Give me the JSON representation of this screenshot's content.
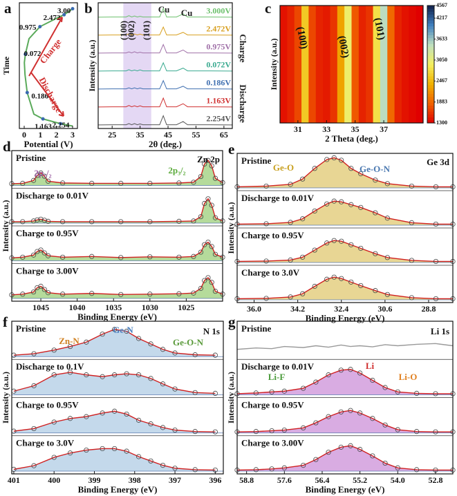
{
  "chart_data": [
    {
      "type": "profile",
      "panel": "a",
      "xlabel": "Potential (V)",
      "ylabel": "Time",
      "color": "#5aaa5a",
      "point_color": "#3a6ab0",
      "xlim": [
        -0.3,
        3.3
      ],
      "xticks": [
        0,
        1,
        2,
        3
      ],
      "x": [
        3.0,
        2.254,
        1.163,
        0.6,
        0.186,
        0.05,
        0.01,
        0.072,
        0.3,
        0.975,
        2.0,
        2.472,
        3.0
      ],
      "values": [
        2,
        4,
        8,
        12,
        30,
        45,
        55,
        62,
        75,
        85,
        92,
        95,
        100
      ],
      "ylim": [
        0,
        105
      ],
      "points": {
        "x": [
          3.0,
          2.472,
          0.975,
          0.072,
          0.186,
          1.163,
          2.254
        ],
        "values": [
          100,
          95,
          85,
          62,
          30,
          8,
          4
        ],
        "labels": [
          "3.00",
          "2.472",
          "0.975",
          "0.072",
          "0.186",
          "1.163",
          "2.254"
        ]
      },
      "annotations": [
        {
          "text": "Charge",
          "color": "#d03030"
        },
        {
          "text": "Discharge",
          "color": "#d03030"
        }
      ]
    },
    {
      "type": "stack",
      "panel": "b",
      "xlabel": "2θ (deg.)",
      "ylabel": "Intensity (a.u.)",
      "markers": false,
      "xlim": [
        20,
        68
      ],
      "xticks": [
        25,
        35,
        45,
        55,
        65
      ],
      "span": [
        29,
        39
      ],
      "span_color": "#e4d8f4",
      "x": [
        20,
        25,
        30,
        31,
        32,
        33,
        34,
        35,
        36,
        40,
        42,
        43.3,
        44.5,
        48,
        50.4,
        52,
        60,
        68
      ],
      "series": [
        {
          "name": "3.000V",
          "color": "#6cc06c",
          "values": [
            5,
            6,
            6,
            14,
            6,
            12,
            6,
            10,
            6,
            6,
            6,
            60,
            6,
            6,
            25,
            6,
            6,
            5
          ]
        },
        {
          "name": "2.472V",
          "color": "#d8a020",
          "values": [
            5,
            6,
            6,
            13,
            6,
            12,
            6,
            11,
            6,
            6,
            6,
            55,
            6,
            6,
            22,
            6,
            6,
            5
          ]
        },
        {
          "name": "0.975V",
          "color": "#a070a8",
          "values": [
            5,
            6,
            6,
            12,
            6,
            13,
            6,
            10,
            6,
            6,
            6,
            58,
            6,
            6,
            24,
            6,
            6,
            5
          ]
        },
        {
          "name": "0.072V",
          "color": "#3aaa90",
          "values": [
            5,
            6,
            6,
            13,
            6,
            11,
            6,
            12,
            6,
            6,
            6,
            56,
            6,
            6,
            23,
            6,
            6,
            5
          ]
        },
        {
          "name": "0.186V",
          "color": "#3f6fb0",
          "values": [
            5,
            6,
            6,
            12,
            6,
            12,
            6,
            11,
            6,
            6,
            6,
            57,
            6,
            6,
            22,
            6,
            6,
            5
          ]
        },
        {
          "name": "1.163V",
          "color": "#d03030",
          "values": [
            5,
            6,
            6,
            14,
            6,
            12,
            6,
            12,
            6,
            6,
            6,
            60,
            6,
            6,
            25,
            6,
            6,
            5
          ]
        },
        {
          "name": "2.254V",
          "color": "#555555",
          "values": [
            5,
            6,
            6,
            13,
            6,
            13,
            6,
            11,
            6,
            6,
            6,
            62,
            6,
            6,
            26,
            6,
            6,
            5
          ]
        }
      ],
      "annotations": [
        {
          "text": "Cu",
          "color": "#222222"
        },
        {
          "text": "Cu",
          "color": "#222222"
        },
        {
          "text": "(100)",
          "color": "#222222"
        },
        {
          "text": "(002)",
          "color": "#222222"
        },
        {
          "text": "(101)",
          "color": "#222222"
        },
        {
          "text": "Charge",
          "color": "#222222"
        },
        {
          "text": "Discharge",
          "color": "#222222"
        }
      ]
    },
    {
      "type": "heatmap",
      "panel": "c",
      "xlabel": "2 Theta (deg.)",
      "ylabel": "Intensity (a.u.)",
      "xlim": [
        29.75,
        39.75
      ],
      "xticks": [
        31,
        33,
        35,
        37
      ],
      "x": [
        30,
        30.5,
        31,
        31.5,
        32,
        32.5,
        33,
        33.5,
        34,
        34.5,
        35,
        35.5,
        36,
        36.5,
        37,
        37.5,
        38,
        38.5,
        39,
        39.5
      ],
      "values": [
        1400,
        1500,
        1700,
        2600,
        1700,
        1500,
        1450,
        1600,
        2300,
        3000,
        1800,
        1500,
        1600,
        2800,
        3500,
        1900,
        1500,
        1400,
        1350,
        1300
      ],
      "clim": [
        1300,
        4567
      ],
      "cticks": [
        1300,
        1883,
        2467,
        3050,
        3633,
        4217,
        4567
      ],
      "colormap": [
        "#e00000",
        "#f06000",
        "#f0b000",
        "#f4f060",
        "#c0e0c0",
        "#4080c0",
        "#10204a"
      ],
      "annotations": [
        {
          "text": "(100)",
          "color": "#111111"
        },
        {
          "text": "(002)",
          "color": "#111111"
        },
        {
          "text": "(101)",
          "color": "#111111"
        }
      ]
    },
    {
      "type": "stack",
      "panel": "d",
      "xlabel": "Binding Energy (eV)",
      "ylabel": "Intensity (a.u.)",
      "markers": true,
      "fill": "#9ccf7a",
      "xlim": [
        1049,
        1020
      ],
      "xticks": [
        1045,
        1040,
        1035,
        1030,
        1025
      ],
      "x": [
        1049,
        1047.5,
        1046,
        1045.5,
        1045,
        1044.5,
        1044,
        1042,
        1038,
        1034,
        1030,
        1026,
        1024,
        1023,
        1022.5,
        1022,
        1021.5,
        1021,
        1020
      ],
      "series": [
        {
          "name": "Pristine",
          "color": "#d02020",
          "values": [
            5,
            6,
            14,
            28,
            35,
            26,
            12,
            7,
            6,
            6,
            6,
            7,
            9,
            25,
            60,
            70,
            55,
            20,
            8
          ]
        },
        {
          "name": "Discharge to 0.01V",
          "color": "#d02020",
          "values": [
            4,
            4,
            6,
            9,
            11,
            8,
            5,
            4,
            4,
            4,
            4,
            5,
            6,
            18,
            55,
            68,
            50,
            15,
            6
          ]
        },
        {
          "name": "Charge to 0.95V",
          "color": "#d02020",
          "values": [
            8,
            10,
            16,
            26,
            30,
            22,
            14,
            10,
            12,
            9,
            11,
            10,
            12,
            24,
            45,
            52,
            40,
            18,
            10
          ]
        },
        {
          "name": "Charge to 3.00V",
          "color": "#d02020",
          "values": [
            10,
            12,
            18,
            30,
            34,
            25,
            16,
            12,
            14,
            11,
            12,
            13,
            15,
            28,
            50,
            58,
            45,
            20,
            12
          ]
        }
      ],
      "annotations": [
        {
          "text": "2p₁/₂",
          "color": "#9a5aa0"
        },
        {
          "text": "2p₃/₂",
          "color": "#5aaa3a"
        },
        {
          "text": "Zn 2p",
          "color": "#111111"
        }
      ]
    },
    {
      "type": "stack",
      "panel": "e",
      "xlabel": "Binding Energy (eV)",
      "ylabel": "Intensity (a.u.)",
      "markers": true,
      "fill": "#e0c870",
      "xlim": [
        36.7,
        27.8
      ],
      "xticks": [
        {
          "value": 36,
          "label": "36.0"
        },
        34.2,
        32.4,
        30.6,
        28.8
      ],
      "x": [
        36.7,
        35.5,
        34.5,
        34,
        33.5,
        33,
        32.7,
        32.4,
        32,
        31.6,
        31,
        30.5,
        29.5,
        28.5,
        27.8
      ],
      "series": [
        {
          "name": "Pristine",
          "color": "#d02020",
          "values": [
            3,
            5,
            10,
            25,
            55,
            80,
            85,
            78,
            55,
            40,
            22,
            12,
            5,
            3,
            3
          ]
        },
        {
          "name": "Discharge to 0.01V",
          "color": "#d02020",
          "values": [
            3,
            4,
            8,
            18,
            40,
            60,
            68,
            66,
            58,
            50,
            35,
            20,
            7,
            3,
            3
          ]
        },
        {
          "name": "Charge to 0.95V",
          "color": "#d02020",
          "values": [
            3,
            4,
            7,
            15,
            35,
            55,
            62,
            60,
            50,
            40,
            25,
            14,
            6,
            3,
            3
          ]
        },
        {
          "name": "Charge to 3.0V",
          "color": "#d02020",
          "values": [
            3,
            4,
            8,
            17,
            38,
            58,
            64,
            60,
            50,
            40,
            26,
            15,
            6,
            3,
            3
          ]
        }
      ],
      "annotations": [
        {
          "text": "Ge-O",
          "color": "#c8a020"
        },
        {
          "text": "Ge-O-N",
          "color": "#4a78b0"
        },
        {
          "text": "Ge 3d",
          "color": "#111111"
        }
      ]
    },
    {
      "type": "stack",
      "panel": "f",
      "xlabel": "Binding Energy (eV)",
      "ylabel": "Intensity (a.u.)",
      "markers": true,
      "fill": "#b0cce4",
      "xlim": [
        401.05,
        395.8
      ],
      "xticks": [
        401,
        400,
        399,
        398,
        397,
        396
      ],
      "x": [
        401,
        400.5,
        400,
        399.6,
        399.2,
        398.8,
        398.5,
        398.2,
        397.9,
        397.6,
        397.3,
        397,
        396.5,
        396
      ],
      "series": [
        {
          "name": "Pristine",
          "color": "#d02020",
          "values": [
            4,
            8,
            18,
            28,
            40,
            62,
            75,
            70,
            50,
            35,
            20,
            10,
            5,
            4
          ]
        },
        {
          "name": "Discharge to 0.1V",
          "color": "#d02020",
          "values": [
            10,
            25,
            55,
            62,
            55,
            50,
            55,
            58,
            55,
            45,
            30,
            16,
            6,
            4
          ]
        },
        {
          "name": "Charge to 0.95V",
          "color": "#d02020",
          "values": [
            5,
            12,
            30,
            40,
            45,
            55,
            60,
            52,
            35,
            25,
            15,
            8,
            4,
            3
          ]
        },
        {
          "name": "Charge to 3.0V",
          "color": "#d02020",
          "values": [
            5,
            15,
            38,
            50,
            58,
            62,
            62,
            55,
            40,
            28,
            16,
            8,
            4,
            3
          ]
        }
      ],
      "annotations": [
        {
          "text": "Zn-N",
          "color": "#d08020"
        },
        {
          "text": "Ge-N",
          "color": "#4a80c0"
        },
        {
          "text": "Ge-O-N",
          "color": "#5a9a3a"
        },
        {
          "text": "N 1s",
          "color": "#111111"
        }
      ]
    },
    {
      "type": "stack",
      "panel": "g",
      "xlabel": "Binding Energy (eV)",
      "ylabel": "Intensity (a.u.)",
      "markers": true,
      "fill": "#cc90d8",
      "xlim": [
        59.1,
        52.25
      ],
      "xticks": [
        58.8,
        57.6,
        56.4,
        55.2,
        {
          "value": 54,
          "label": "54.0"
        },
        52.8
      ],
      "x": [
        59.1,
        58.5,
        58,
        57.6,
        57,
        56.6,
        56.2,
        55.8,
        55.5,
        55.2,
        54.8,
        54.4,
        54,
        53.4,
        52.8,
        52.25
      ],
      "series": [
        {
          "name": "Pristine",
          "color": "#999999",
          "filled": false,
          "values": [
            20,
            24,
            22,
            28,
            25,
            30,
            26,
            32,
            28,
            30,
            27,
            33,
            30,
            34,
            36,
            30
          ]
        },
        {
          "name": "Discharge to 0.01V",
          "color": "#d02020",
          "values": [
            3,
            5,
            8,
            10,
            18,
            35,
            55,
            68,
            70,
            60,
            40,
            20,
            8,
            4,
            3,
            3
          ]
        },
        {
          "name": "Charge to 0.95V",
          "color": "#d02020",
          "values": [
            3,
            4,
            6,
            8,
            14,
            28,
            45,
            58,
            62,
            55,
            40,
            22,
            9,
            4,
            3,
            3
          ]
        },
        {
          "name": "Charge to 3.00V",
          "color": "#d02020",
          "values": [
            3,
            4,
            6,
            9,
            16,
            32,
            52,
            66,
            70,
            60,
            42,
            22,
            9,
            4,
            3,
            3
          ]
        }
      ],
      "annotations": [
        {
          "text": "Li-F",
          "color": "#4a9a3a"
        },
        {
          "text": "Li",
          "color": "#d03030"
        },
        {
          "text": "Li-O",
          "color": "#e08020"
        },
        {
          "text": "Li 1s",
          "color": "#111111"
        }
      ]
    }
  ]
}
